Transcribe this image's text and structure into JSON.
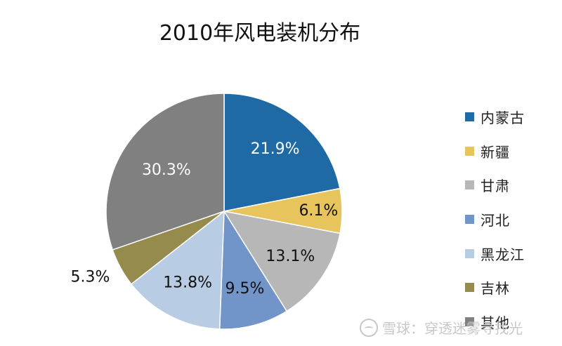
{
  "chart_data": {
    "type": "pie",
    "title": "2010年风电装机分布",
    "categories": [
      "内蒙古",
      "新疆",
      "甘肃",
      "河北",
      "黑龙江",
      "吉林",
      "其他"
    ],
    "values": [
      21.9,
      6.1,
      13.1,
      9.5,
      13.8,
      5.3,
      30.3
    ],
    "data_labels": [
      "21.9%",
      "6.1%",
      "13.1%",
      "9.5%",
      "13.8%",
      "5.3%",
      "30.3%"
    ],
    "colors": [
      "#1f6aa5",
      "#e8c55c",
      "#b7b7b7",
      "#7295c9",
      "#b8cce4",
      "#958b4c",
      "#808080"
    ],
    "label_colors": [
      "#ffffff",
      "#111111",
      "#111111",
      "#111111",
      "#111111",
      "#111111",
      "#ffffff"
    ],
    "start_angle_deg": 0,
    "direction": "clockwise",
    "legend": "right"
  },
  "watermark": {
    "text": "雪球：穿透迷雾寻找光",
    "icon": "snowball-logo-icon"
  }
}
